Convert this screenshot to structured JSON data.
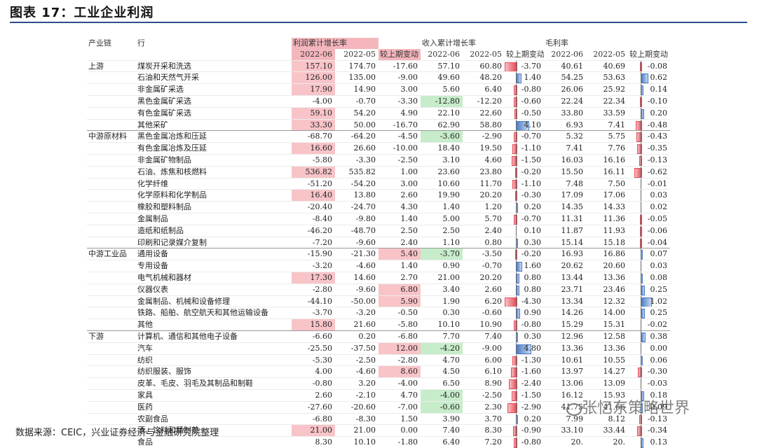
{
  "title": "图表 17：工业企业利润",
  "source": "数据来源：CEIC，兴业证券经济与金融研究院整理",
  "watermark": "张忆东策略世界",
  "colors": {
    "increase": "#e84a55",
    "decrease": "#4a7bc8",
    "highlight_pos": "#f8c4c8",
    "highlight_neg": "#c7ecca"
  },
  "chart_data": {
    "type": "table",
    "group_headers": [
      "产业链",
      "行",
      "利润累计增长率",
      "收入累计增长率",
      "毛利率"
    ],
    "columns": [
      "2022-06",
      "2022-05",
      "较上期变动",
      "2022-06",
      "2022-05",
      "较上期变动",
      "2022-06",
      "2022-05",
      "较上期变动"
    ],
    "rows": [
      {
        "chain": "上游",
        "industry": "煤炭开采和洗选",
        "p06": "157.10",
        "p05": "174.70",
        "pch": "-17.60",
        "r06": "57.10",
        "r05": "60.80",
        "rch": "-3.70",
        "g06": "40.61",
        "g05": "40.69",
        "gch": "-0.08"
      },
      {
        "chain": "",
        "industry": "石油和天然气开采",
        "p06": "126.00",
        "p05": "135.00",
        "pch": "-9.00",
        "r06": "49.60",
        "r05": "48.20",
        "rch": "1.40",
        "g06": "54.25",
        "g05": "53.63",
        "gch": "0.62"
      },
      {
        "chain": "",
        "industry": "非金属矿采选",
        "p06": "17.90",
        "p05": "14.90",
        "pch": "3.00",
        "r06": "5.60",
        "r05": "6.40",
        "rch": "-0.80",
        "g06": "26.06",
        "g05": "25.92",
        "gch": "0.14"
      },
      {
        "chain": "",
        "industry": "黑色金属矿采选",
        "p06": "-4.00",
        "p05": "-0.70",
        "pch": "-3.30",
        "r06": "-12.80",
        "r05": "-12.20",
        "rch": "-0.60",
        "g06": "22.24",
        "g05": "22.34",
        "gch": "-0.10"
      },
      {
        "chain": "",
        "industry": "有色金属矿采选",
        "p06": "59.10",
        "p05": "54.20",
        "pch": "4.90",
        "r06": "22.10",
        "r05": "22.60",
        "rch": "-0.50",
        "g06": "33.80",
        "g05": "33.59",
        "gch": "0.20"
      },
      {
        "chain": "",
        "industry": "其他采矿",
        "p06": "33.30",
        "p05": "50.00",
        "pch": "-16.70",
        "r06": "62.90",
        "r05": "58.80",
        "rch": "4.10",
        "g06": "6.93",
        "g05": "7.41",
        "gch": "-0.48"
      },
      {
        "chain": "中游原材料",
        "industry": "黑色金属冶炼和压延",
        "p06": "-68.70",
        "p05": "-64.20",
        "pch": "-4.50",
        "r06": "-3.60",
        "r05": "-2.90",
        "rch": "-0.70",
        "g06": "5.32",
        "g05": "5.75",
        "gch": "-0.43"
      },
      {
        "chain": "",
        "industry": "有色金属冶炼及压延",
        "p06": "16.60",
        "p05": "26.60",
        "pch": "-10.00",
        "r06": "18.40",
        "r05": "19.50",
        "rch": "-1.10",
        "g06": "7.41",
        "g05": "7.76",
        "gch": "-0.35"
      },
      {
        "chain": "",
        "industry": "非金属矿物制品",
        "p06": "-5.80",
        "p05": "-3.30",
        "pch": "-2.50",
        "r06": "3.10",
        "r05": "4.60",
        "rch": "-1.50",
        "g06": "16.03",
        "g05": "16.16",
        "gch": "-0.13"
      },
      {
        "chain": "",
        "industry": "石油、炼焦和核燃料",
        "p06": "536.82",
        "p05": "535.82",
        "pch": "1.00",
        "r06": "23.60",
        "r05": "23.80",
        "rch": "-0.20",
        "g06": "15.50",
        "g05": "16.11",
        "gch": "-0.62"
      },
      {
        "chain": "",
        "industry": "化学纤维",
        "p06": "-51.20",
        "p05": "-54.20",
        "pch": "3.00",
        "r06": "10.60",
        "r05": "11.70",
        "rch": "-1.10",
        "g06": "7.48",
        "g05": "7.50",
        "gch": "-0.01"
      },
      {
        "chain": "",
        "industry": "化学原料和化学制品",
        "p06": "16.40",
        "p05": "13.80",
        "pch": "2.60",
        "r06": "19.90",
        "r05": "20.20",
        "rch": "-0.30",
        "g06": "17.09",
        "g05": "17.06",
        "gch": "0.03"
      },
      {
        "chain": "",
        "industry": "橡胶和塑料制品",
        "p06": "-20.40",
        "p05": "-24.70",
        "pch": "4.30",
        "r06": "1.40",
        "r05": "1.20",
        "rch": "0.20",
        "g06": "14.35",
        "g05": "14.33",
        "gch": "0.02"
      },
      {
        "chain": "",
        "industry": "金属制品",
        "p06": "-8.40",
        "p05": "-9.80",
        "pch": "1.40",
        "r06": "5.00",
        "r05": "5.70",
        "rch": "-0.70",
        "g06": "11.31",
        "g05": "11.36",
        "gch": "-0.05"
      },
      {
        "chain": "",
        "industry": "造纸和纸制品",
        "p06": "-46.20",
        "p05": "-48.70",
        "pch": "2.50",
        "r06": "2.50",
        "r05": "2.40",
        "rch": "0.10",
        "g06": "11.87",
        "g05": "11.93",
        "gch": "-0.06"
      },
      {
        "chain": "",
        "industry": "印刷和记录媒介复制",
        "p06": "-7.20",
        "p05": "-9.60",
        "pch": "2.40",
        "r06": "1.10",
        "r05": "0.80",
        "rch": "0.30",
        "g06": "15.14",
        "g05": "15.18",
        "gch": "-0.04"
      },
      {
        "chain": "中游工业品",
        "industry": "通用设备",
        "p06": "-15.90",
        "p05": "-21.30",
        "pch": "5.40",
        "r06": "-3.70",
        "r05": "-3.50",
        "rch": "-0.20",
        "g06": "16.93",
        "g05": "16.86",
        "gch": "0.07"
      },
      {
        "chain": "",
        "industry": "专用设备",
        "p06": "-3.20",
        "p05": "-4.60",
        "pch": "1.40",
        "r06": "0.90",
        "r05": "-0.70",
        "rch": "1.60",
        "g06": "20.62",
        "g05": "20.60",
        "gch": "0.03"
      },
      {
        "chain": "",
        "industry": "电气机械和器材",
        "p06": "17.30",
        "p05": "14.60",
        "pch": "2.70",
        "r06": "21.00",
        "r05": "20.20",
        "rch": "0.80",
        "g06": "13.44",
        "g05": "13.36",
        "gch": "0.08"
      },
      {
        "chain": "",
        "industry": "仪器仪表",
        "p06": "-2.80",
        "p05": "-9.60",
        "pch": "6.80",
        "r06": "3.40",
        "r05": "2.60",
        "rch": "0.80",
        "g06": "23.71",
        "g05": "23.46",
        "gch": "0.25"
      },
      {
        "chain": "",
        "industry": "金属制品、机械和设备修理",
        "p06": "-44.10",
        "p05": "-50.00",
        "pch": "5.90",
        "r06": "1.90",
        "r05": "6.20",
        "rch": "-4.30",
        "g06": "13.34",
        "g05": "12.32",
        "gch": "1.02"
      },
      {
        "chain": "",
        "industry": "铁路、船舶、航空航天和其他运输设备",
        "p06": "-3.70",
        "p05": "-3.20",
        "pch": "-0.50",
        "r06": "0.30",
        "r05": "-0.60",
        "rch": "0.90",
        "g06": "14.26",
        "g05": "14.00",
        "gch": "0.25"
      },
      {
        "chain": "",
        "industry": "其他",
        "p06": "15.80",
        "p05": "21.60",
        "pch": "-5.80",
        "r06": "10.10",
        "r05": "10.90",
        "rch": "-0.80",
        "g06": "15.29",
        "g05": "15.31",
        "gch": "-0.02"
      },
      {
        "chain": "下游",
        "industry": "计算机、通信和其他电子设备",
        "p06": "-6.60",
        "p05": "0.20",
        "pch": "-6.80",
        "r06": "7.70",
        "r05": "7.40",
        "rch": "0.30",
        "g06": "12.96",
        "g05": "12.58",
        "gch": "0.38"
      },
      {
        "chain": "",
        "industry": "汽车",
        "p06": "-25.50",
        "p05": "-37.50",
        "pch": "12.00",
        "r06": "-4.20",
        "r05": "-9.00",
        "rch": "4.80",
        "g06": "13.36",
        "g05": "13.36",
        "gch": "0.00"
      },
      {
        "chain": "",
        "industry": "纺织",
        "p06": "-5.30",
        "p05": "-2.50",
        "pch": "-2.80",
        "r06": "4.70",
        "r05": "6.00",
        "rch": "-1.30",
        "g06": "10.61",
        "g05": "10.55",
        "gch": "0.06"
      },
      {
        "chain": "",
        "industry": "纺织服装、服饰",
        "p06": "4.00",
        "p05": "-4.60",
        "pch": "8.60",
        "r06": "4.50",
        "r05": "6.10",
        "rch": "-1.60",
        "g06": "13.97",
        "g05": "14.27",
        "gch": "-0.30"
      },
      {
        "chain": "",
        "industry": "皮革、毛皮、羽毛及其制品和制鞋",
        "p06": "-0.80",
        "p05": "3.20",
        "pch": "-4.00",
        "r06": "6.50",
        "r05": "8.90",
        "rch": "-2.40",
        "g06": "13.06",
        "g05": "13.09",
        "gch": "-0.03"
      },
      {
        "chain": "",
        "industry": "家具",
        "p06": "2.60",
        "p05": "-2.10",
        "pch": "4.70",
        "r06": "-4.00",
        "r05": "-2.50",
        "rch": "-1.50",
        "g06": "16.12",
        "g05": "15.93",
        "gch": "0.18"
      },
      {
        "chain": "",
        "industry": "医药",
        "p06": "-27.60",
        "p05": "-20.60",
        "pch": "-7.00",
        "r06": "-0.60",
        "r05": "2.30",
        "rch": "-2.90",
        "g06": "41.75",
        "g05": "41.66",
        "gch": "0.09"
      },
      {
        "chain": "",
        "industry": "农副食品",
        "p06": "-6.80",
        "p05": "-8.30",
        "pch": "1.50",
        "r06": "3.90",
        "r05": "3.70",
        "rch": "0.20",
        "g06": "7.99",
        "g05": "8.12",
        "gch": "-0.13"
      },
      {
        "chain": "",
        "industry": "酒、饮料和精制茶",
        "p06": "21.00",
        "p05": "21.00",
        "pch": "0.00",
        "r06": "7.40",
        "r05": "8.30",
        "rch": "-0.90",
        "g06": "33.10",
        "g05": "33.44",
        "gch": "-0.34"
      },
      {
        "chain": "",
        "industry": "食品",
        "p06": "8.30",
        "p05": "10.10",
        "pch": "-1.80",
        "r06": "6.40",
        "r05": "7.20",
        "rch": "-0.80",
        "g06": "20.",
        "g05": "20.",
        "gch": "0.13"
      }
    ]
  }
}
